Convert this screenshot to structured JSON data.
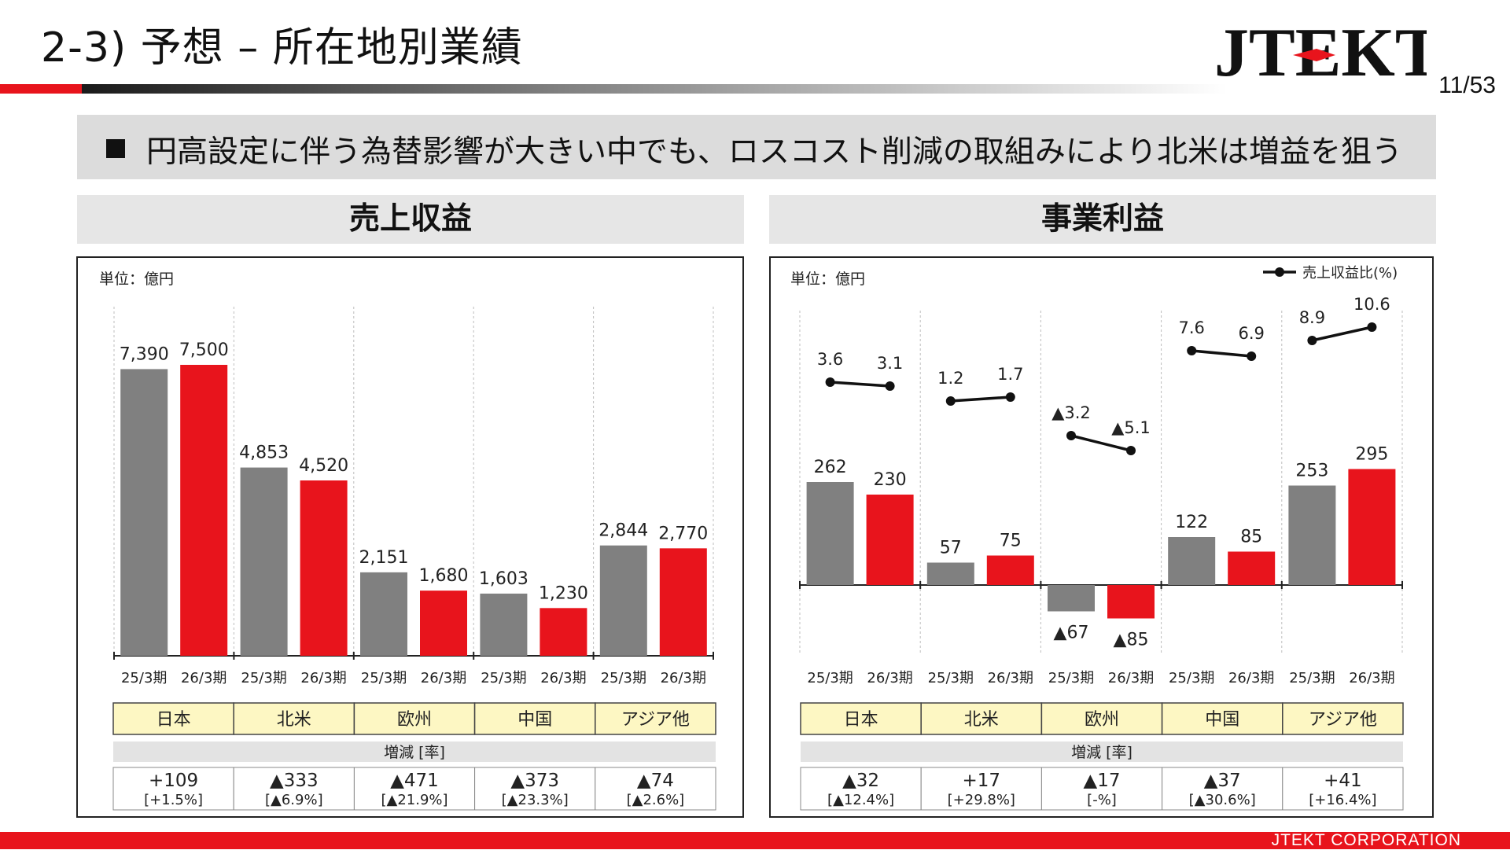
{
  "header": {
    "title": "2-3) 予想 – 所在地別業績",
    "logo_text": "JTEKT",
    "page_number": "11/53"
  },
  "message": "円高設定に伴う為替影響が大きい中でも、ロスコスト削減の取組みにより北米は増益を狙う",
  "footer": {
    "company": "JTEKT CORPORATION"
  },
  "colors": {
    "prior": "#808080",
    "forecast": "#e8141c",
    "region_fill": "#fdf7c3",
    "accent": "#e8141c"
  },
  "left_panel": {
    "header": "売上収益",
    "unit": "単位：億円"
  },
  "right_panel": {
    "header": "事業利益",
    "unit": "単位：億円"
  },
  "chart_data": [
    {
      "type": "bar",
      "title": "売上収益",
      "unit": "単位：億円",
      "categories": [
        "日本",
        "北米",
        "欧州",
        "中国",
        "アジア他"
      ],
      "x_labels": [
        "25/3期",
        "26/3期"
      ],
      "series": [
        {
          "name": "25/3期",
          "values": [
            7390,
            4853,
            2151,
            1603,
            2844
          ],
          "labels": [
            "7,390",
            "4,853",
            "2,151",
            "1,603",
            "2,844"
          ]
        },
        {
          "name": "26/3期",
          "values": [
            7500,
            4520,
            1680,
            1230,
            2770
          ],
          "labels": [
            "7,500",
            "4,520",
            "1,680",
            "1,230",
            "2,770"
          ]
        }
      ],
      "ylim": [
        0,
        7500
      ],
      "change_header": "増減 [率]",
      "changes": [
        {
          "amount": "+109",
          "rate": "[+1.5%]"
        },
        {
          "amount": "▲333",
          "rate": "[▲6.9%]"
        },
        {
          "amount": "▲471",
          "rate": "[▲21.9%]"
        },
        {
          "amount": "▲373",
          "rate": "[▲23.3%]"
        },
        {
          "amount": "▲74",
          "rate": "[▲2.6%]"
        }
      ]
    },
    {
      "type": "bar",
      "title": "事業利益",
      "unit": "単位：億円",
      "categories": [
        "日本",
        "北米",
        "欧州",
        "中国",
        "アジア他"
      ],
      "x_labels": [
        "25/3期",
        "26/3期"
      ],
      "series": [
        {
          "name": "25/3期",
          "values": [
            262,
            57,
            -67,
            122,
            253
          ],
          "labels": [
            "262",
            "57",
            "▲67",
            "122",
            "253"
          ]
        },
        {
          "name": "26/3期",
          "values": [
            230,
            75,
            -85,
            85,
            295
          ],
          "labels": [
            "230",
            "75",
            "▲85",
            "85",
            "295"
          ]
        }
      ],
      "ratio_series": {
        "name": "売上収益比(%)",
        "values": [
          [
            3.6,
            3.1
          ],
          [
            1.2,
            1.7
          ],
          [
            -3.2,
            -5.1
          ],
          [
            7.6,
            6.9
          ],
          [
            8.9,
            10.6
          ]
        ],
        "labels": [
          [
            "3.6",
            "3.1"
          ],
          [
            "1.2",
            "1.7"
          ],
          [
            "▲3.2",
            "▲5.1"
          ],
          [
            "7.6",
            "6.9"
          ],
          [
            "8.9",
            "10.6"
          ]
        ]
      },
      "ylim": [
        -150,
        600
      ],
      "change_header": "増減 [率]",
      "changes": [
        {
          "amount": "▲32",
          "rate": "[▲12.4%]"
        },
        {
          "amount": "+17",
          "rate": "[+29.8%]"
        },
        {
          "amount": "▲17",
          "rate": "[-%]"
        },
        {
          "amount": "▲37",
          "rate": "[▲30.6%]"
        },
        {
          "amount": "+41",
          "rate": "[+16.4%]"
        }
      ]
    }
  ]
}
